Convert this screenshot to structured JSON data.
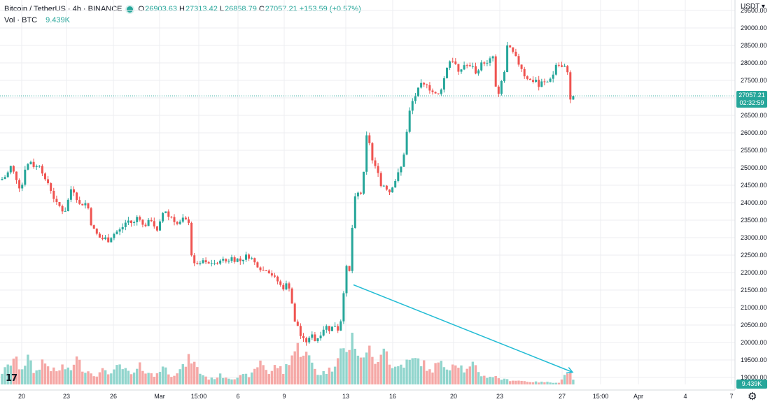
{
  "legend": {
    "title": "Bitcoin / TetherUS · 4h · BINANCE",
    "o_label": "O",
    "o_value": "26903.63",
    "h_label": "H",
    "h_value": "27313.42",
    "l_label": "L",
    "l_value": "26858.79",
    "c_label": "C",
    "c_value": "27057.21",
    "change": "+153.59 (+0.57%)",
    "vol_title": "Vol · BTC",
    "vol_value": "9.439K"
  },
  "currency": "USDT",
  "price_tag": {
    "price": "27057.21",
    "countdown": "02:32:59"
  },
  "volume_tag": "9.439K",
  "logo": "17",
  "settings_icon": "gear-icon",
  "colors": {
    "up": "#26a69a",
    "down": "#ef5350",
    "up_vol": "#91d5cd",
    "down_vol": "#f5a8a6",
    "trend": "#22bcd4",
    "grid": "#ecedf0"
  },
  "chart_data": {
    "type": "candlestick",
    "symbol": "Bitcoin / TetherUS",
    "interval": "4h",
    "exchange": "BINANCE",
    "ylim": [
      18800,
      29800
    ],
    "y_ticks": [
      "29500.00",
      "29000.00",
      "28500.00",
      "28000.00",
      "27500.00",
      "27000.00",
      "26500.00",
      "26000.00",
      "25500.00",
      "25000.00",
      "24500.00",
      "24000.00",
      "23500.00",
      "23000.00",
      "22500.00",
      "22000.00",
      "21500.00",
      "21000.00",
      "20500.00",
      "20000.00",
      "19500.00",
      "19000.00"
    ],
    "x_ticks": [
      "20",
      "23",
      "26",
      "Mar",
      "15:00",
      "6",
      "9",
      "13",
      "16",
      "20",
      "23",
      "27",
      "15:00",
      "Apr",
      "4",
      "7"
    ],
    "path": [
      [
        0,
        24650
      ],
      [
        5,
        24700
      ],
      [
        10,
        24800
      ],
      [
        15,
        25050
      ],
      [
        20,
        24850
      ],
      [
        25,
        24600
      ],
      [
        30,
        24300
      ],
      [
        35,
        24950
      ],
      [
        40,
        25100
      ],
      [
        45,
        25200
      ],
      [
        50,
        24950
      ],
      [
        55,
        25150
      ],
      [
        60,
        24900
      ],
      [
        65,
        24600
      ],
      [
        70,
        24550
      ],
      [
        75,
        24200
      ],
      [
        80,
        24000
      ],
      [
        85,
        23900
      ],
      [
        90,
        23750
      ],
      [
        95,
        23800
      ],
      [
        100,
        24400
      ],
      [
        105,
        24350
      ],
      [
        110,
        24100
      ],
      [
        115,
        23900
      ],
      [
        120,
        24000
      ],
      [
        125,
        23950
      ],
      [
        130,
        23400
      ],
      [
        135,
        23200
      ],
      [
        140,
        23050
      ],
      [
        145,
        22950
      ],
      [
        150,
        23000
      ],
      [
        155,
        22900
      ],
      [
        160,
        23050
      ],
      [
        165,
        23150
      ],
      [
        170,
        23200
      ],
      [
        175,
        23300
      ],
      [
        180,
        23450
      ],
      [
        185,
        23500
      ],
      [
        190,
        23350
      ],
      [
        195,
        23600
      ],
      [
        200,
        23550
      ],
      [
        205,
        23300
      ],
      [
        210,
        23400
      ],
      [
        215,
        23550
      ],
      [
        220,
        23350
      ],
      [
        225,
        23150
      ],
      [
        230,
        23550
      ],
      [
        235,
        23850
      ],
      [
        240,
        23600
      ],
      [
        245,
        23600
      ],
      [
        250,
        23450
      ],
      [
        255,
        23350
      ],
      [
        260,
        23550
      ],
      [
        265,
        23500
      ],
      [
        270,
        23450
      ],
      [
        275,
        22150
      ],
      [
        280,
        22300
      ],
      [
        285,
        22200
      ],
      [
        290,
        22350
      ],
      [
        295,
        22250
      ],
      [
        300,
        22250
      ],
      [
        305,
        22300
      ],
      [
        310,
        22200
      ],
      [
        315,
        22400
      ],
      [
        320,
        22350
      ],
      [
        325,
        22300
      ],
      [
        330,
        22450
      ],
      [
        335,
        22350
      ],
      [
        340,
        22400
      ],
      [
        345,
        22300
      ],
      [
        350,
        22500
      ],
      [
        355,
        22450
      ],
      [
        360,
        22400
      ],
      [
        365,
        22250
      ],
      [
        370,
        22150
      ],
      [
        375,
        22050
      ],
      [
        380,
        22100
      ],
      [
        385,
        22000
      ],
      [
        390,
        21900
      ],
      [
        395,
        21800
      ],
      [
        400,
        21650
      ],
      [
        405,
        21550
      ],
      [
        410,
        21700
      ],
      [
        415,
        21500
      ],
      [
        420,
        20600
      ],
      [
        425,
        20500
      ],
      [
        430,
        20150
      ],
      [
        435,
        20050
      ],
      [
        440,
        20000
      ],
      [
        445,
        20300
      ],
      [
        450,
        20050
      ],
      [
        455,
        20150
      ],
      [
        460,
        20300
      ],
      [
        465,
        20500
      ],
      [
        470,
        20350
      ],
      [
        475,
        20450
      ],
      [
        480,
        20500
      ],
      [
        485,
        20250
      ],
      [
        490,
        21300
      ],
      [
        495,
        22150
      ],
      [
        500,
        22000
      ],
      [
        505,
        24000
      ],
      [
        510,
        24300
      ],
      [
        515,
        24200
      ],
      [
        520,
        24900
      ],
      [
        525,
        26250
      ],
      [
        530,
        25300
      ],
      [
        535,
        25050
      ],
      [
        540,
        24900
      ],
      [
        545,
        24400
      ],
      [
        550,
        24550
      ],
      [
        555,
        24250
      ],
      [
        560,
        24450
      ],
      [
        565,
        24650
      ],
      [
        570,
        24900
      ],
      [
        575,
        25100
      ],
      [
        580,
        25850
      ],
      [
        585,
        26600
      ],
      [
        590,
        26950
      ],
      [
        595,
        27100
      ],
      [
        600,
        27400
      ],
      [
        605,
        27350
      ],
      [
        610,
        27400
      ],
      [
        615,
        27200
      ],
      [
        620,
        27150
      ],
      [
        625,
        27050
      ],
      [
        630,
        27250
      ],
      [
        635,
        27600
      ],
      [
        640,
        28000
      ],
      [
        645,
        28100
      ],
      [
        650,
        28000
      ],
      [
        655,
        27700
      ],
      [
        660,
        27850
      ],
      [
        665,
        28000
      ],
      [
        670,
        27850
      ],
      [
        675,
        27950
      ],
      [
        680,
        27650
      ],
      [
        685,
        27900
      ],
      [
        690,
        28050
      ],
      [
        695,
        27950
      ],
      [
        700,
        28100
      ],
      [
        705,
        28200
      ],
      [
        710,
        26800
      ],
      [
        715,
        27400
      ],
      [
        720,
        27650
      ],
      [
        725,
        28550
      ],
      [
        730,
        28350
      ],
      [
        735,
        28250
      ],
      [
        740,
        28000
      ],
      [
        745,
        27850
      ],
      [
        750,
        27600
      ],
      [
        755,
        27550
      ],
      [
        760,
        27450
      ],
      [
        765,
        27550
      ],
      [
        770,
        27300
      ],
      [
        775,
        27500
      ],
      [
        780,
        27400
      ],
      [
        785,
        27550
      ],
      [
        790,
        27650
      ],
      [
        795,
        28000
      ],
      [
        800,
        27900
      ],
      [
        805,
        27850
      ],
      [
        810,
        27950
      ],
      [
        814,
        26900
      ],
      [
        818,
        27057
      ]
    ],
    "volume_path": [
      [
        0,
        0.37
      ],
      [
        10,
        0.58
      ],
      [
        20,
        0.95
      ],
      [
        30,
        0.54
      ],
      [
        40,
        0.94
      ],
      [
        50,
        0.36
      ],
      [
        60,
        0.84
      ],
      [
        70,
        0.64
      ],
      [
        80,
        0.42
      ],
      [
        90,
        0.66
      ],
      [
        100,
        0.42
      ],
      [
        108,
        0.97
      ],
      [
        120,
        0.52
      ],
      [
        130,
        0.44
      ],
      [
        140,
        0.33
      ],
      [
        150,
        0.56
      ],
      [
        160,
        0.35
      ],
      [
        170,
        0.68
      ],
      [
        180,
        0.47
      ],
      [
        190,
        0.32
      ],
      [
        200,
        0.64
      ],
      [
        210,
        0.48
      ],
      [
        220,
        0.28
      ],
      [
        232,
        0.65
      ],
      [
        245,
        0.35
      ],
      [
        260,
        0.55
      ],
      [
        272,
        0.97
      ],
      [
        285,
        0.43
      ],
      [
        300,
        0.18
      ],
      [
        315,
        0.32
      ],
      [
        330,
        0.22
      ],
      [
        345,
        0.29
      ],
      [
        360,
        0.35
      ],
      [
        373,
        0.88
      ],
      [
        385,
        0.36
      ],
      [
        395,
        0.71
      ],
      [
        405,
        0.43
      ],
      [
        415,
        1.0
      ],
      [
        425,
        1.3
      ],
      [
        435,
        1.17
      ],
      [
        445,
        0.78
      ],
      [
        455,
        0.35
      ],
      [
        465,
        0.46
      ],
      [
        475,
        0.55
      ],
      [
        485,
        1.34
      ],
      [
        495,
        1.07
      ],
      [
        505,
        1.75
      ],
      [
        515,
        0.76
      ],
      [
        525,
        1.42
      ],
      [
        535,
        0.63
      ],
      [
        548,
        1.56
      ],
      [
        560,
        0.55
      ],
      [
        575,
        0.72
      ],
      [
        588,
        0.84
      ],
      [
        600,
        0.88
      ],
      [
        615,
        0.44
      ],
      [
        625,
        0.75
      ],
      [
        640,
        0.62
      ],
      [
        652,
        0.85
      ],
      [
        665,
        0.45
      ],
      [
        677,
        0.69
      ],
      [
        690,
        0.28
      ],
      [
        705,
        0.29
      ],
      [
        720,
        0.17
      ],
      [
        740,
        0.14
      ],
      [
        760,
        0.09
      ],
      [
        780,
        0.08
      ],
      [
        800,
        0.07
      ],
      [
        812,
        0.53
      ],
      [
        818,
        0.14
      ]
    ],
    "current_price": 27057.21,
    "annotation": {
      "type": "trend-arrow",
      "from": [
        505,
        21650
      ],
      "to": [
        818,
        19150
      ]
    }
  }
}
